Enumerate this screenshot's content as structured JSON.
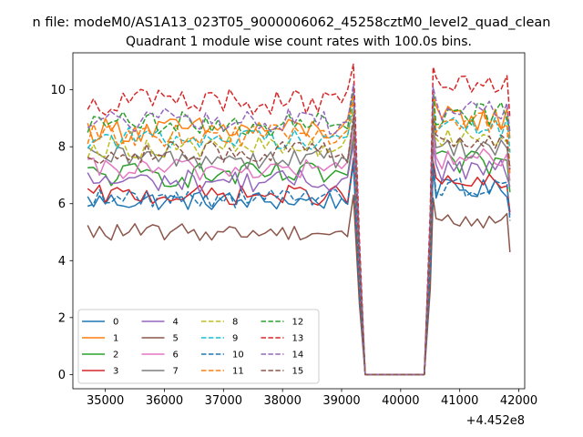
{
  "chart_data": {
    "type": "line",
    "suptitle": "n file: modeM0/AS1A13_023T05_9000006062_45258cztM0_level2_quad_clean",
    "title": "Quadrant 1 module wise count rates with 100.0s bins.",
    "xlabel": "",
    "ylabel": "",
    "x_offset_label": "+4.452e8",
    "xlim": [
      34450,
      42100
    ],
    "ylim": [
      -0.5,
      11.3
    ],
    "xticks": [
      35000,
      36000,
      37000,
      38000,
      39000,
      40000,
      41000,
      42000
    ],
    "xtick_labels": [
      "35000",
      "36000",
      "37000",
      "38000",
      "39000",
      "40000",
      "41000",
      "42000"
    ],
    "yticks": [
      0,
      2,
      4,
      6,
      8,
      10
    ],
    "ytick_labels": [
      "0",
      "2",
      "4",
      "6",
      "8",
      "10"
    ],
    "x_start": 34700,
    "x_step": 100,
    "legend_location": "lower-left",
    "gap": {
      "drop_start": 39200,
      "zero_from": 39400,
      "zero_to": 40400,
      "rise_to": 40600
    },
    "series": [
      {
        "name": "0",
        "color": "#1f77b4",
        "dashed": false,
        "level": 6.1,
        "amp": 0.35,
        "lastval": 5.6
      },
      {
        "name": "1",
        "color": "#ff7f0e",
        "dashed": false,
        "level": 8.6,
        "amp": 0.45,
        "lastval": 8.3
      },
      {
        "name": "2",
        "color": "#2ca02c",
        "dashed": false,
        "level": 7.0,
        "amp": 0.45,
        "lastval": 6.4
      },
      {
        "name": "3",
        "color": "#d62728",
        "dashed": false,
        "level": 6.3,
        "amp": 0.35,
        "lastval": 5.7
      },
      {
        "name": "4",
        "color": "#9467bd",
        "dashed": false,
        "level": 6.8,
        "amp": 0.4,
        "lastval": 6.6
      },
      {
        "name": "5",
        "color": "#8c564b",
        "dashed": false,
        "level": 5.0,
        "amp": 0.3,
        "lastval": 4.3
      },
      {
        "name": "6",
        "color": "#e377c2",
        "dashed": false,
        "level": 7.2,
        "amp": 0.4,
        "lastval": 6.8
      },
      {
        "name": "7",
        "color": "#7f7f7f",
        "dashed": false,
        "level": 7.6,
        "amp": 0.4,
        "lastval": 7.3
      },
      {
        "name": "8",
        "color": "#bcbd22",
        "dashed": true,
        "level": 8.0,
        "amp": 0.4,
        "lastval": 7.5
      },
      {
        "name": "9",
        "color": "#17becf",
        "dashed": true,
        "level": 8.3,
        "amp": 0.4,
        "lastval": 7.8
      },
      {
        "name": "10",
        "color": "#1f77b4",
        "dashed": true,
        "level": 6.2,
        "amp": 0.35,
        "lastval": 5.4
      },
      {
        "name": "11",
        "color": "#ff7f0e",
        "dashed": true,
        "level": 8.4,
        "amp": 0.4,
        "lastval": 7.0
      },
      {
        "name": "12",
        "color": "#2ca02c",
        "dashed": true,
        "level": 8.8,
        "amp": 0.45,
        "lastval": 8.6
      },
      {
        "name": "13",
        "color": "#d62728",
        "dashed": true,
        "level": 9.6,
        "amp": 0.5,
        "lastval": 9.0
      },
      {
        "name": "14",
        "color": "#9467bd",
        "dashed": true,
        "level": 8.9,
        "amp": 0.45,
        "lastval": 8.5
      },
      {
        "name": "15",
        "color": "#8c564b",
        "dashed": true,
        "level": 7.8,
        "amp": 0.4,
        "lastval": 7.2
      }
    ]
  }
}
